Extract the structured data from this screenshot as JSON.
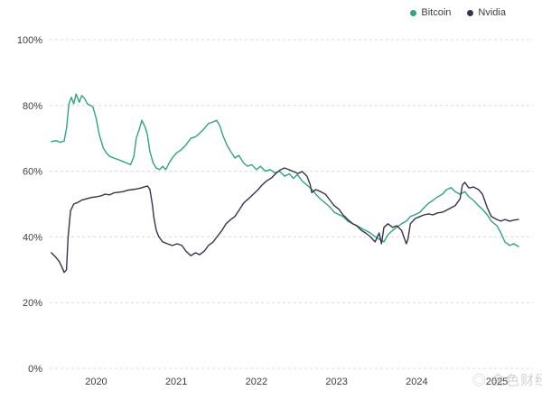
{
  "page": {
    "background": "#ffffff"
  },
  "watermark": {
    "icon": "◎",
    "text": "金色财经"
  },
  "chart_data": {
    "type": "line",
    "title": "",
    "xlabel": "",
    "ylabel": "",
    "xlim": [
      2019.42,
      2025.45
    ],
    "ylim": [
      0,
      100
    ],
    "x_ticks": [
      "2020",
      "2021",
      "2022",
      "2023",
      "2024",
      "2025"
    ],
    "x_tick_values": [
      2020,
      2021,
      2022,
      2023,
      2024,
      2025
    ],
    "y_ticks": [
      0,
      20,
      40,
      60,
      80,
      100
    ],
    "y_tick_suffix": "%",
    "grid": "horizontal-dashed",
    "grid_color": "#d9d9d9",
    "text_color": "#3d3d3d",
    "legend_position": "top-right",
    "series": [
      {
        "name": "Bitcoin",
        "color": "#2fa380",
        "points": [
          [
            2019.44,
            69
          ],
          [
            2019.5,
            69.3
          ],
          [
            2019.55,
            68.8
          ],
          [
            2019.6,
            69.2
          ],
          [
            2019.63,
            73
          ],
          [
            2019.66,
            80.5
          ],
          [
            2019.69,
            82.5
          ],
          [
            2019.72,
            80.5
          ],
          [
            2019.75,
            83.5
          ],
          [
            2019.79,
            81
          ],
          [
            2019.82,
            83
          ],
          [
            2019.86,
            82
          ],
          [
            2019.89,
            80.5
          ],
          [
            2019.93,
            80
          ],
          [
            2019.96,
            79.5
          ],
          [
            2020,
            76
          ],
          [
            2020.04,
            71
          ],
          [
            2020.09,
            67
          ],
          [
            2020.13,
            65.5
          ],
          [
            2020.17,
            64.5
          ],
          [
            2020.22,
            64
          ],
          [
            2020.28,
            63.5
          ],
          [
            2020.33,
            63
          ],
          [
            2020.38,
            62.5
          ],
          [
            2020.43,
            62
          ],
          [
            2020.47,
            64.5
          ],
          [
            2020.5,
            70
          ],
          [
            2020.54,
            73
          ],
          [
            2020.57,
            75.5
          ],
          [
            2020.61,
            73.5
          ],
          [
            2020.64,
            71
          ],
          [
            2020.67,
            66
          ],
          [
            2020.71,
            62.5
          ],
          [
            2020.75,
            61
          ],
          [
            2020.79,
            60.5
          ],
          [
            2020.83,
            61.5
          ],
          [
            2020.87,
            60.5
          ],
          [
            2020.91,
            62.5
          ],
          [
            2020.95,
            64
          ],
          [
            2021,
            65.5
          ],
          [
            2021.06,
            66.5
          ],
          [
            2021.12,
            68
          ],
          [
            2021.18,
            70
          ],
          [
            2021.24,
            70.5
          ],
          [
            2021.29,
            71.5
          ],
          [
            2021.35,
            73
          ],
          [
            2021.4,
            74.5
          ],
          [
            2021.46,
            75
          ],
          [
            2021.5,
            75.5
          ],
          [
            2021.54,
            74
          ],
          [
            2021.58,
            71
          ],
          [
            2021.63,
            68
          ],
          [
            2021.68,
            66
          ],
          [
            2021.73,
            64
          ],
          [
            2021.78,
            64.8
          ],
          [
            2021.84,
            62.5
          ],
          [
            2021.89,
            61.5
          ],
          [
            2021.94,
            62
          ],
          [
            2022,
            60.5
          ],
          [
            2022.05,
            61.5
          ],
          [
            2022.11,
            60
          ],
          [
            2022.17,
            60.5
          ],
          [
            2022.23,
            59.5
          ],
          [
            2022.29,
            60
          ],
          [
            2022.35,
            58.5
          ],
          [
            2022.41,
            59.2
          ],
          [
            2022.46,
            57.8
          ],
          [
            2022.51,
            59
          ],
          [
            2022.57,
            57
          ],
          [
            2022.63,
            55.8
          ],
          [
            2022.69,
            54.5
          ],
          [
            2022.74,
            53
          ],
          [
            2022.8,
            51.5
          ],
          [
            2022.86,
            50.3
          ],
          [
            2022.92,
            49
          ],
          [
            2022.97,
            47.5
          ],
          [
            2023.03,
            46.8
          ],
          [
            2023.08,
            46.2
          ],
          [
            2023.14,
            44.8
          ],
          [
            2023.2,
            44
          ],
          [
            2023.25,
            43.5
          ],
          [
            2023.31,
            42.6
          ],
          [
            2023.36,
            42
          ],
          [
            2023.42,
            41.2
          ],
          [
            2023.48,
            40.1
          ],
          [
            2023.53,
            39.3
          ],
          [
            2023.59,
            38.5
          ],
          [
            2023.64,
            40.7
          ],
          [
            2023.7,
            42
          ],
          [
            2023.75,
            43
          ],
          [
            2023.81,
            44
          ],
          [
            2023.87,
            44.8
          ],
          [
            2023.92,
            46.2
          ],
          [
            2023.98,
            46.8
          ],
          [
            2024.04,
            47.5
          ],
          [
            2024.09,
            48.9
          ],
          [
            2024.15,
            50.3
          ],
          [
            2024.2,
            51.1
          ],
          [
            2024.26,
            52.2
          ],
          [
            2024.32,
            53
          ],
          [
            2024.37,
            54.4
          ],
          [
            2024.43,
            55
          ],
          [
            2024.48,
            53.8
          ],
          [
            2024.54,
            53
          ],
          [
            2024.6,
            53.8
          ],
          [
            2024.65,
            52.2
          ],
          [
            2024.71,
            51.1
          ],
          [
            2024.77,
            49.5
          ],
          [
            2024.82,
            48.4
          ],
          [
            2024.88,
            46.7
          ],
          [
            2024.93,
            44.8
          ],
          [
            2025,
            43.4
          ],
          [
            2025.05,
            41.2
          ],
          [
            2025.1,
            38.5
          ],
          [
            2025.16,
            37.4
          ],
          [
            2025.21,
            37.9
          ],
          [
            2025.27,
            37.1
          ]
        ]
      },
      {
        "name": "Nvidia",
        "color": "#37324f",
        "points": [
          [
            2019.44,
            35.2
          ],
          [
            2019.49,
            34
          ],
          [
            2019.54,
            32.5
          ],
          [
            2019.57,
            31
          ],
          [
            2019.6,
            29.2
          ],
          [
            2019.63,
            30
          ],
          [
            2019.65,
            40
          ],
          [
            2019.68,
            48
          ],
          [
            2019.72,
            50
          ],
          [
            2019.77,
            50.5
          ],
          [
            2019.82,
            51.2
          ],
          [
            2019.88,
            51.6
          ],
          [
            2019.94,
            52
          ],
          [
            2020,
            52.2
          ],
          [
            2020.06,
            52.5
          ],
          [
            2020.11,
            53
          ],
          [
            2020.17,
            52.8
          ],
          [
            2020.22,
            53.4
          ],
          [
            2020.28,
            53.6
          ],
          [
            2020.34,
            53.8
          ],
          [
            2020.39,
            54.2
          ],
          [
            2020.45,
            54.4
          ],
          [
            2020.5,
            54.6
          ],
          [
            2020.56,
            54.9
          ],
          [
            2020.61,
            55.3
          ],
          [
            2020.64,
            55.5
          ],
          [
            2020.67,
            54.5
          ],
          [
            2020.7,
            50
          ],
          [
            2020.72,
            46
          ],
          [
            2020.75,
            42
          ],
          [
            2020.78,
            40.1
          ],
          [
            2020.83,
            38.5
          ],
          [
            2020.89,
            37.9
          ],
          [
            2020.95,
            37.4
          ],
          [
            2021.01,
            37.9
          ],
          [
            2021.07,
            37.4
          ],
          [
            2021.12,
            35.7
          ],
          [
            2021.18,
            34.3
          ],
          [
            2021.24,
            35.2
          ],
          [
            2021.29,
            34.6
          ],
          [
            2021.35,
            35.7
          ],
          [
            2021.4,
            37.4
          ],
          [
            2021.46,
            38.5
          ],
          [
            2021.51,
            40.1
          ],
          [
            2021.57,
            42
          ],
          [
            2021.62,
            44
          ],
          [
            2021.68,
            45.3
          ],
          [
            2021.73,
            46.2
          ],
          [
            2021.79,
            48.4
          ],
          [
            2021.84,
            50.3
          ],
          [
            2021.9,
            51.6
          ],
          [
            2021.96,
            53
          ],
          [
            2022.02,
            54.4
          ],
          [
            2022.07,
            55.8
          ],
          [
            2022.13,
            57.1
          ],
          [
            2022.19,
            58
          ],
          [
            2022.24,
            59.3
          ],
          [
            2022.3,
            60.4
          ],
          [
            2022.35,
            61
          ],
          [
            2022.41,
            60.4
          ],
          [
            2022.46,
            59.9
          ],
          [
            2022.52,
            59.3
          ],
          [
            2022.57,
            59.9
          ],
          [
            2022.63,
            58.5
          ],
          [
            2022.67,
            56
          ],
          [
            2022.69,
            53.5
          ],
          [
            2022.74,
            54.4
          ],
          [
            2022.8,
            53.8
          ],
          [
            2022.86,
            53
          ],
          [
            2022.92,
            51.1
          ],
          [
            2022.97,
            49.5
          ],
          [
            2023.03,
            48.4
          ],
          [
            2023.08,
            46.7
          ],
          [
            2023.14,
            45.3
          ],
          [
            2023.2,
            44
          ],
          [
            2023.25,
            43.4
          ],
          [
            2023.31,
            42
          ],
          [
            2023.36,
            41.2
          ],
          [
            2023.42,
            40.1
          ],
          [
            2023.48,
            38.5
          ],
          [
            2023.53,
            41.2
          ],
          [
            2023.56,
            37.9
          ],
          [
            2023.59,
            42.9
          ],
          [
            2023.64,
            44
          ],
          [
            2023.7,
            42.9
          ],
          [
            2023.75,
            43.4
          ],
          [
            2023.81,
            42
          ],
          [
            2023.87,
            37.9
          ],
          [
            2023.89,
            39.3
          ],
          [
            2023.92,
            44
          ],
          [
            2023.98,
            45.6
          ],
          [
            2024.04,
            46.2
          ],
          [
            2024.09,
            46.7
          ],
          [
            2024.15,
            47
          ],
          [
            2024.2,
            46.7
          ],
          [
            2024.26,
            47.3
          ],
          [
            2024.32,
            47.5
          ],
          [
            2024.37,
            48.1
          ],
          [
            2024.43,
            48.9
          ],
          [
            2024.48,
            49.5
          ],
          [
            2024.54,
            51.6
          ],
          [
            2024.57,
            55.8
          ],
          [
            2024.6,
            56.6
          ],
          [
            2024.65,
            54.9
          ],
          [
            2024.71,
            55.2
          ],
          [
            2024.77,
            54.4
          ],
          [
            2024.82,
            53
          ],
          [
            2024.88,
            48.9
          ],
          [
            2024.93,
            46.2
          ],
          [
            2025,
            45.3
          ],
          [
            2025.05,
            44.8
          ],
          [
            2025.1,
            45.3
          ],
          [
            2025.16,
            44.8
          ],
          [
            2025.21,
            45.1
          ],
          [
            2025.27,
            45.3
          ]
        ]
      }
    ]
  }
}
